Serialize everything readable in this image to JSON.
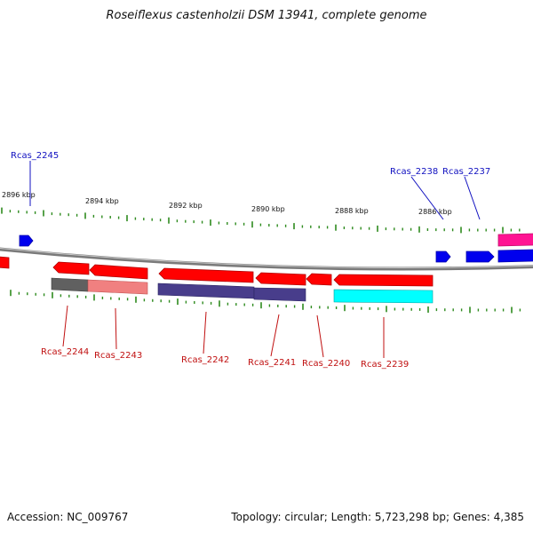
{
  "title": "Roseiflexus castenholzii DSM 13941, complete genome",
  "footer": {
    "accession": "Accession: NC_009767",
    "summary": "Topology: circular; Length: 5,723,298 bp; Genes: 4,385"
  },
  "colors": {
    "backbone": "#808080",
    "tick": "#2e8b1e",
    "top_label": "#1010c0",
    "bottom_label": "#c01010",
    "red": "#ff0000",
    "blue": "#0000ff",
    "magenta": "#ff1493",
    "navy": "#483d8b",
    "cyan": "#00ffff",
    "gray": "#606060",
    "pink": "#f08080"
  },
  "scale_labels": [
    "2896 kbp",
    "2894 kbp",
    "2892 kbp",
    "2890 kbp",
    "2888 kbp",
    "2886 kbp"
  ],
  "top_gene_labels": [
    "Rcas_2245",
    "Rcas_2238",
    "Rcas_2237"
  ],
  "bottom_gene_labels": [
    "Rcas_2244",
    "Rcas_2243",
    "Rcas_2242",
    "Rcas_2241",
    "Rcas_2240",
    "Rcas_2239"
  ]
}
